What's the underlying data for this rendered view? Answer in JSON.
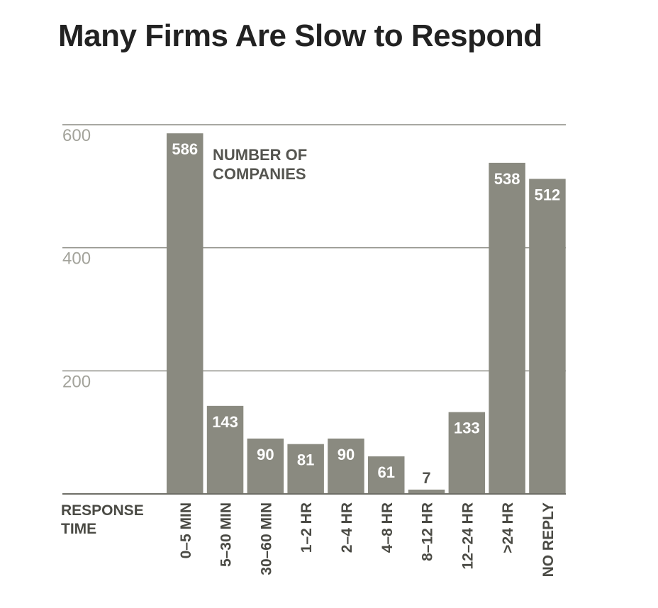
{
  "chart_data": {
    "type": "bar",
    "title": "Many Firms Are Slow to Respond",
    "xlabel": "RESPONSE TIME",
    "ylabel": "",
    "value_label": "NUMBER OF COMPANIES",
    "categories": [
      "0–5 MIN",
      "5–30 MIN",
      "30–60 MIN",
      "1–2 HR",
      "2–4 HR",
      "4–8 HR",
      "8–12 HR",
      "12–24 HR",
      ">24 HR",
      "NO REPLY"
    ],
    "values": [
      586,
      143,
      90,
      81,
      90,
      61,
      7,
      133,
      538,
      512
    ],
    "ylim": [
      0,
      600
    ],
    "yticks": [
      200,
      400,
      600
    ],
    "grid": true,
    "colors": {
      "bar": "#8a8a80",
      "grid": "#8c8c84",
      "tick": "#a3a39b"
    }
  }
}
